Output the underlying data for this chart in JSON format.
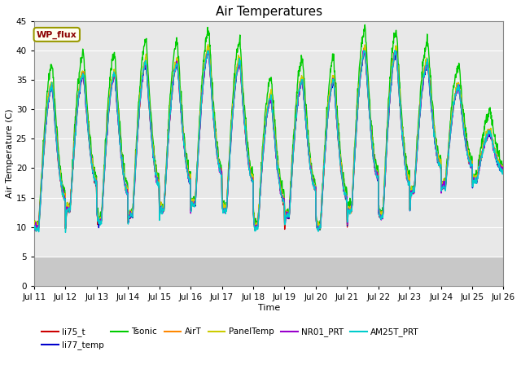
{
  "title": "Air Temperatures",
  "xlabel": "Time",
  "ylabel": "Air Temperature (C)",
  "site_label": "WP_flux",
  "ylim": [
    0,
    45
  ],
  "yticks": [
    0,
    5,
    10,
    15,
    20,
    25,
    30,
    35,
    40,
    45
  ],
  "series": [
    {
      "name": "li75_t",
      "color": "#cc0000",
      "lw": 1.0
    },
    {
      "name": "li77_temp",
      "color": "#0000cc",
      "lw": 1.0
    },
    {
      "name": "Tsonic",
      "color": "#00cc00",
      "lw": 1.0
    },
    {
      "name": "AirT",
      "color": "#ff8800",
      "lw": 1.0
    },
    {
      "name": "PanelTemp",
      "color": "#cccc00",
      "lw": 1.0
    },
    {
      "name": "NR01_PRT",
      "color": "#9900cc",
      "lw": 1.0
    },
    {
      "name": "AM25T_PRT",
      "color": "#00cccc",
      "lw": 1.0
    }
  ],
  "fig_bg": "#ffffff",
  "plot_bg": "#e8e8e8",
  "lower_band_color": "#d0d0d0",
  "grid_color": "#ffffff",
  "title_fontsize": 11,
  "label_fontsize": 8,
  "tick_fontsize": 7.5,
  "legend_fontsize": 7.5
}
